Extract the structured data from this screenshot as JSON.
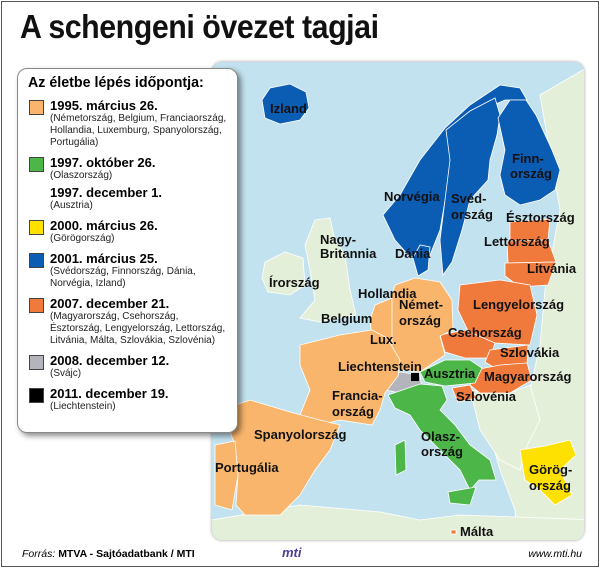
{
  "title": "A schengeni övezet tagjai",
  "legend": {
    "title": "Az életbe lépés időpontja:",
    "items": [
      {
        "color": "#f9b56b",
        "date": "1995. március 26.",
        "countries": "(Németország, Belgium, Franciaország, Hollandia, Luxemburg, Spanyolország, Portugália)"
      },
      {
        "color": "#4cb748",
        "date": "1997. október 26.",
        "countries": "(Olaszország)"
      },
      {
        "color": null,
        "date": "1997. december 1.",
        "countries": "(Ausztria)"
      },
      {
        "color": "#ffe100",
        "date": "2000. március 26.",
        "countries": "(Görögország)"
      },
      {
        "color": "#0b5cb3",
        "date": "2001. március 25.",
        "countries": "(Svédország, Finnország, Dánia, Norvégia, Izland)"
      },
      {
        "color": "#ef7a3b",
        "date": "2007. december 21.",
        "countries": "(Magyarország, Csehország, Észtország, Lengyelország, Lettország, Litvánia, Málta, Szlovákia, Szlovénia)"
      },
      {
        "color": "#b4b4bc",
        "date": "2008. december 12.",
        "countries": "(Svájc)"
      },
      {
        "color": "#000000",
        "date": "2011. december 19.",
        "countries": "(Liechtenstein)"
      }
    ]
  },
  "map": {
    "colors": {
      "sea": "#c3e2ef",
      "other_land": "#e4efd9"
    },
    "labels": {
      "izland": "Izland",
      "finn1": "Finn-",
      "finn2": "ország",
      "norvegia": "Norvégia",
      "sved1": "Svéd-",
      "sved2": "ország",
      "esztorszag": "Észtország",
      "nagy1": "Nagy-",
      "nagy2": "Britannia",
      "dania": "Dánia",
      "lettorszag": "Lettország",
      "litvania": "Litvánia",
      "irorszag": "Írország",
      "hollandia": "Hollandia",
      "nemet1": "Német-",
      "nemet2": "ország",
      "lengyelorszag": "Lengyelország",
      "belgium": "Belgium",
      "csehorszag": "Csehország",
      "lux": "Lux.",
      "szlovakia": "Szlovákia",
      "liechtenstein": "Liechtenstein",
      "ausztria": "Ausztria",
      "magyarorszag": "Magyarország",
      "francia1": "Francia-",
      "francia2": "ország",
      "szlovenia": "Szlovénia",
      "spanyolorszag": "Spanyolország",
      "olasz1": "Olasz-",
      "olasz2": "ország",
      "portugalia": "Portugália",
      "gorog1": "Görög-",
      "gorog2": "ország",
      "malta": "Málta"
    }
  },
  "footer": {
    "source_prefix": "Forrás:",
    "source": "MTVA - Sajtóadatbank / MTI",
    "logo": "mti",
    "url": "www.mti.hu"
  }
}
